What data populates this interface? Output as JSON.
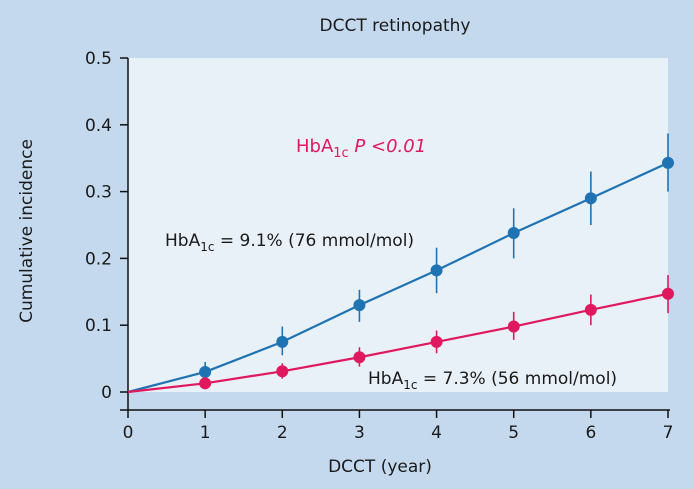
{
  "chart_data": {
    "type": "line",
    "title": "DCCT  retinopathy",
    "xlabel": "DCCT (year)",
    "ylabel": "Cumulative incidence",
    "xlim": [
      0,
      7
    ],
    "ylim": [
      0,
      0.5
    ],
    "x_ticks": [
      "0",
      "1",
      "2",
      "3",
      "4",
      "5",
      "6",
      "7"
    ],
    "y_ticks": [
      "0",
      "0.1",
      "0.2",
      "0.3",
      "0.4",
      "0.5"
    ],
    "grid": false,
    "colors": {
      "plot_background": "#e8f0f8",
      "page_background": "#c5d9ee"
    },
    "series": [
      {
        "color": "#1f73b3",
        "start": [
          0,
          0
        ],
        "points": [
          {
            "x": 1,
            "y": 0.03,
            "lo": 0.018,
            "hi": 0.045
          },
          {
            "x": 2,
            "y": 0.075,
            "lo": 0.055,
            "hi": 0.098
          },
          {
            "x": 3,
            "y": 0.13,
            "lo": 0.105,
            "hi": 0.153
          },
          {
            "x": 4,
            "y": 0.182,
            "lo": 0.148,
            "hi": 0.216
          },
          {
            "x": 5,
            "y": 0.238,
            "lo": 0.2,
            "hi": 0.275
          },
          {
            "x": 6,
            "y": 0.29,
            "lo": 0.25,
            "hi": 0.33
          },
          {
            "x": 7,
            "y": 0.343,
            "lo": 0.3,
            "hi": 0.387
          }
        ]
      },
      {
        "color": "#e0195f",
        "start": [
          0,
          0
        ],
        "points": [
          {
            "x": 1,
            "y": 0.013,
            "lo": 0.005,
            "hi": 0.022
          },
          {
            "x": 2,
            "y": 0.031,
            "lo": 0.02,
            "hi": 0.043
          },
          {
            "x": 3,
            "y": 0.052,
            "lo": 0.038,
            "hi": 0.067
          },
          {
            "x": 4,
            "y": 0.075,
            "lo": 0.058,
            "hi": 0.092
          },
          {
            "x": 5,
            "y": 0.098,
            "lo": 0.078,
            "hi": 0.12
          },
          {
            "x": 6,
            "y": 0.123,
            "lo": 0.1,
            "hi": 0.146
          },
          {
            "x": 7,
            "y": 0.147,
            "lo": 0.118,
            "hi": 0.175
          }
        ]
      }
    ],
    "annotations": {
      "p_value": {
        "base": "HbA",
        "sub": "1c",
        "italic": " P <0.01",
        "color": "#e0195f"
      },
      "blue_label": {
        "base": "HbA",
        "sub": "1c",
        "rest": " = 9.1% (76 mmol/mol)"
      },
      "red_label": {
        "base": "HbA",
        "sub": "1c",
        "rest": " = 7.3% (56 mmol/mol)"
      }
    }
  }
}
